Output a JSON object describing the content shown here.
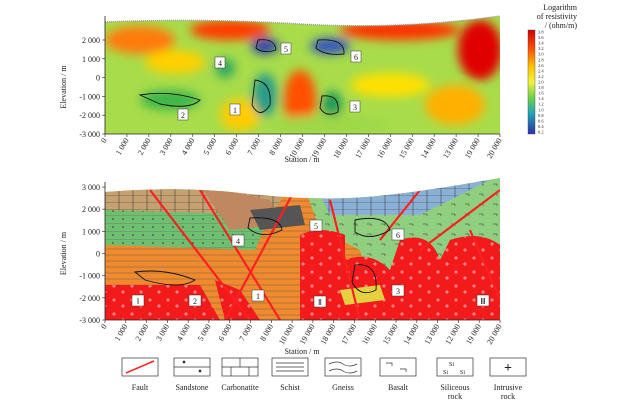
{
  "top_panel": {
    "y_axis_title": "Elevation / m",
    "x_axis_title": "Station / m",
    "y_ticks": [
      "2 000",
      "1 000",
      "0",
      "-1 000",
      "-2 000",
      "-3 000"
    ],
    "x_ticks": [
      "0",
      "1 000",
      "2 000",
      "3 000",
      "4 000",
      "5 000",
      "6 000",
      "7 000",
      "8 000",
      "10 000",
      "19 000",
      "18 000",
      "17 000",
      "16 000",
      "15 000",
      "14 000",
      "13 000",
      "19 000",
      "20 000"
    ],
    "colorbar_title": [
      "Logarithm",
      "of resistivity",
      "/ (ohm/m)"
    ],
    "colorbar_ticks": [
      "3.8",
      "3.6",
      "3.4",
      "3.2",
      "3.0",
      "2.8",
      "2.6",
      "2.4",
      "2.2",
      "2.0",
      "1.8",
      "1.6",
      "1.4",
      "1.2",
      "1.0",
      "0.8",
      "0.6",
      "0.4",
      "0.2"
    ],
    "labels": [
      "1",
      "2",
      "3",
      "4",
      "5",
      "6"
    ]
  },
  "bottom_panel": {
    "y_axis_title": "Elevation / m",
    "x_axis_title": "Station / m",
    "y_ticks": [
      "3 000",
      "2 000",
      "1 000",
      "0",
      "-1 000",
      "-2 000",
      "-3 000"
    ],
    "x_ticks": [
      "0",
      "1 000",
      "2 000",
      "3 000",
      "4 000",
      "5 000",
      "6 000",
      "7 000",
      "8 000",
      "10 000",
      "19 000",
      "18 000",
      "17 000",
      "16 000",
      "15 000",
      "14 000",
      "13 000",
      "12 000",
      "19 000",
      "20 000"
    ],
    "labels": [
      "Ⅰ",
      "2",
      "1",
      "Ⅱ",
      "3",
      "Ⅲ",
      "4",
      "5",
      "6"
    ]
  },
  "legend": [
    "Fault",
    "Sandstone",
    "Carbonatite",
    "Schist",
    "Gneiss",
    "Basalt",
    "Siliceous rock",
    "Intrusive rock"
  ],
  "legend_symbols": {
    "siliceous": [
      "Si",
      "Si",
      "Si"
    ],
    "intrusive": "+"
  }
}
